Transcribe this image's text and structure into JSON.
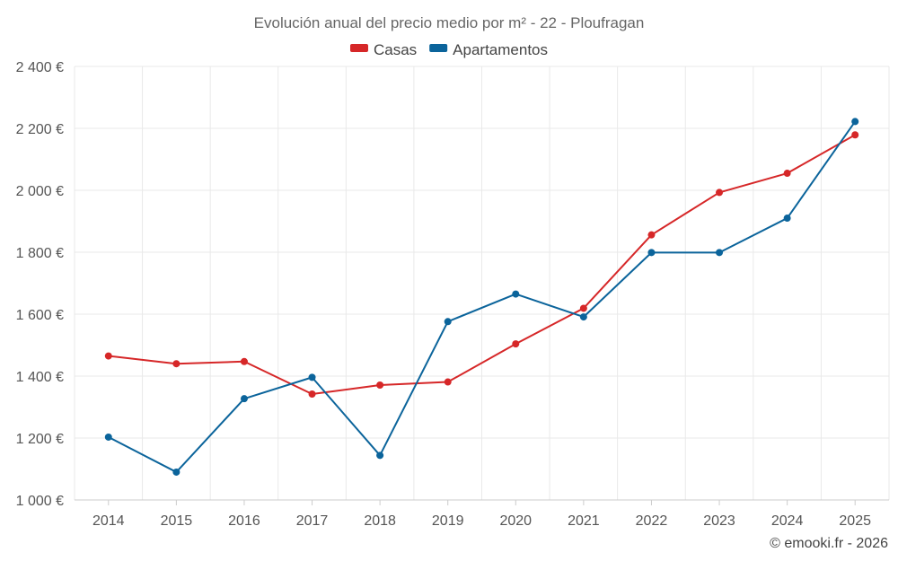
{
  "chart_data": {
    "type": "line",
    "title": "Evolución anual del precio medio por m² - 22 - Ploufragan",
    "categories": [
      "2014",
      "2015",
      "2016",
      "2017",
      "2018",
      "2019",
      "2020",
      "2021",
      "2022",
      "2023",
      "2024",
      "2025"
    ],
    "y_ticks": [
      1000,
      1200,
      1400,
      1600,
      1800,
      2000,
      2200,
      2400
    ],
    "y_tick_labels": [
      "1 000 €",
      "1 200 €",
      "1 400 €",
      "1 600 €",
      "1 800 €",
      "2 000 €",
      "2 200 €",
      "2 400 €"
    ],
    "ylim": [
      1000,
      2400
    ],
    "grid": true,
    "legend_position": "top-center",
    "series": [
      {
        "name": "Casas",
        "color": "#d62728",
        "values": [
          1465,
          1440,
          1447,
          1342,
          1371,
          1381,
          1504,
          1619,
          1856,
          1993,
          2055,
          2179
        ]
      },
      {
        "name": "Apartamentos",
        "color": "#0b649b",
        "values": [
          1203,
          1090,
          1327,
          1396,
          1144,
          1576,
          1665,
          1591,
          1799,
          1799,
          1910,
          2222
        ]
      }
    ]
  },
  "credit": "© emooki.fr - 2026"
}
